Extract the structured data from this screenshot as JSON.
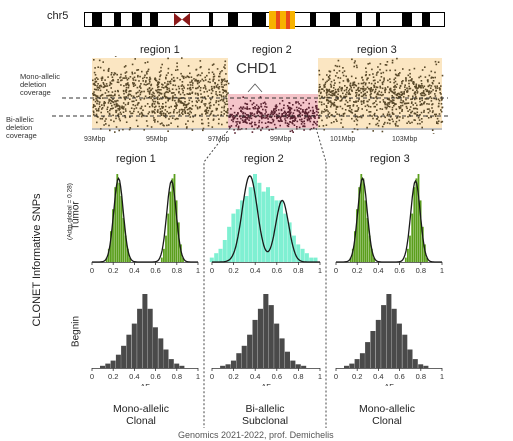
{
  "chromosome": {
    "label": "chr5"
  },
  "top_plot": {
    "regions": [
      "region 1",
      "region 2",
      "region 3"
    ],
    "gene_label": "CHD1",
    "mono_label": [
      "Mono-allelic",
      "deletion",
      "coverage"
    ],
    "bi_label": [
      "Bi-allelic",
      "deletion",
      "coverage"
    ],
    "x_ticks": [
      "93Mbp",
      "95Mbp",
      "97Mbp",
      "99Mbp",
      "101Mbp",
      "103Mbp"
    ],
    "colors": {
      "region_bg": "#fbe6c2",
      "deleted_bg": "#f4c4c9",
      "points": "#5a4a2a",
      "deleted_points": "#5a2230"
    }
  },
  "lower": {
    "y_title": "CLONET Informative SNPs",
    "tumor_label": "Tumor",
    "tumor_sublabel": "(Adm.global = 0.28)",
    "benign_label": "Begnin",
    "region_titles": [
      "region 1",
      "region 2",
      "region 3"
    ],
    "x_ticks": [
      "0",
      "0.2",
      "0.4",
      "0.6",
      "0.8",
      "1"
    ],
    "af_label": "AF",
    "captions": [
      {
        "line1": "Mono-allelic",
        "line2": "Clonal"
      },
      {
        "line1": "Bi-allelic",
        "line2": "Subclonal"
      },
      {
        "line1": "Mono-allelic",
        "line2": "Clonal"
      }
    ],
    "colors": {
      "tumor_clonal": "#5a9e1c",
      "tumor_subclonal": "#7ff0d2",
      "benign": "#4a4a4a"
    }
  },
  "footer": {
    "text": "Genomics 2021-2022, prof. Demichelis"
  },
  "chart_data": [
    {
      "type": "histogram",
      "title": "region 1",
      "xlabel": "",
      "xlim": [
        0,
        1
      ],
      "bins": [
        0.14,
        0.16,
        0.18,
        0.2,
        0.22,
        0.24,
        0.26,
        0.28,
        0.3,
        0.32,
        0.34,
        0.36,
        0.66,
        0.68,
        0.7,
        0.72,
        0.74,
        0.76,
        0.78,
        0.8,
        0.82,
        0.84,
        0.86
      ],
      "values": [
        0.05,
        0.15,
        0.35,
        0.6,
        0.85,
        1.0,
        0.9,
        0.75,
        0.5,
        0.3,
        0.15,
        0.05,
        0.05,
        0.15,
        0.3,
        0.55,
        0.8,
        0.95,
        1.0,
        0.7,
        0.45,
        0.2,
        0.05
      ]
    },
    {
      "type": "histogram",
      "title": "region 2",
      "xlabel": "",
      "xlim": [
        0,
        1
      ],
      "bins": [
        0.0,
        0.04,
        0.08,
        0.12,
        0.16,
        0.2,
        0.24,
        0.28,
        0.32,
        0.36,
        0.4,
        0.44,
        0.48,
        0.52,
        0.56,
        0.6,
        0.64,
        0.68,
        0.72,
        0.76,
        0.8,
        0.84,
        0.88,
        0.92,
        0.96
      ],
      "values": [
        0.05,
        0.1,
        0.15,
        0.25,
        0.4,
        0.55,
        0.6,
        0.7,
        0.75,
        0.85,
        1.0,
        0.9,
        0.8,
        0.85,
        0.75,
        0.7,
        0.7,
        0.55,
        0.45,
        0.3,
        0.2,
        0.15,
        0.1,
        0.05,
        0.05
      ]
    },
    {
      "type": "histogram",
      "title": "region 3",
      "xlabel": "",
      "xlim": [
        0,
        1
      ],
      "bins": [
        0.14,
        0.16,
        0.18,
        0.2,
        0.22,
        0.24,
        0.26,
        0.28,
        0.3,
        0.32,
        0.34,
        0.36,
        0.66,
        0.68,
        0.7,
        0.72,
        0.74,
        0.76,
        0.78,
        0.8,
        0.82,
        0.84,
        0.86
      ],
      "values": [
        0.05,
        0.15,
        0.35,
        0.6,
        0.85,
        1.0,
        0.95,
        0.7,
        0.5,
        0.3,
        0.15,
        0.05,
        0.05,
        0.15,
        0.3,
        0.55,
        0.85,
        0.95,
        1.0,
        0.7,
        0.4,
        0.2,
        0.05
      ]
    },
    {
      "type": "histogram",
      "title": "",
      "xlabel": "AF",
      "xlim": [
        0,
        1
      ],
      "bins": [
        0.1,
        0.15,
        0.2,
        0.25,
        0.3,
        0.35,
        0.4,
        0.45,
        0.5,
        0.55,
        0.6,
        0.65,
        0.7,
        0.75,
        0.8,
        0.85
      ],
      "values": [
        0.03,
        0.06,
        0.1,
        0.18,
        0.3,
        0.45,
        0.6,
        0.8,
        1.0,
        0.8,
        0.55,
        0.4,
        0.25,
        0.12,
        0.06,
        0.03
      ]
    },
    {
      "type": "histogram",
      "title": "",
      "xlabel": "AF",
      "xlim": [
        0,
        1
      ],
      "bins": [
        0.1,
        0.15,
        0.2,
        0.25,
        0.3,
        0.35,
        0.4,
        0.45,
        0.5,
        0.55,
        0.6,
        0.65,
        0.7,
        0.75,
        0.8,
        0.85
      ],
      "values": [
        0.03,
        0.05,
        0.1,
        0.2,
        0.3,
        0.45,
        0.65,
        0.8,
        1.0,
        0.85,
        0.6,
        0.4,
        0.22,
        0.1,
        0.05,
        0.03
      ]
    },
    {
      "type": "histogram",
      "title": "",
      "xlabel": "AF",
      "xlim": [
        0,
        1
      ],
      "bins": [
        0.1,
        0.15,
        0.2,
        0.25,
        0.3,
        0.35,
        0.4,
        0.45,
        0.5,
        0.55,
        0.6,
        0.65,
        0.7,
        0.75,
        0.8,
        0.85
      ],
      "values": [
        0.03,
        0.06,
        0.12,
        0.2,
        0.35,
        0.5,
        0.65,
        0.85,
        1.0,
        0.8,
        0.6,
        0.45,
        0.25,
        0.12,
        0.05,
        0.03
      ]
    }
  ]
}
